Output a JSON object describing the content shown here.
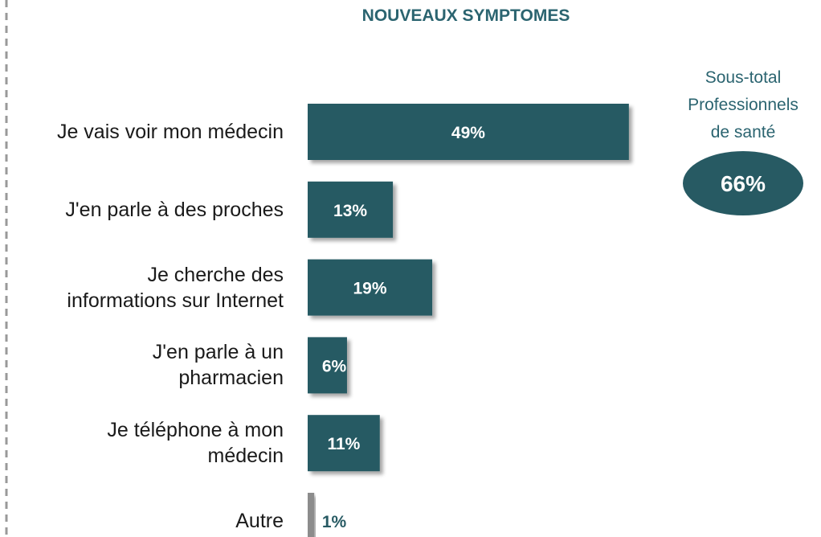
{
  "chart_data": {
    "type": "bar",
    "orientation": "horizontal",
    "title": "NOUVEAUX SYMPTOMES",
    "categories": [
      "Je vais voir mon médecin",
      "J'en parle à des proches",
      "Je cherche des\ninformations sur Internet",
      "J'en parle à un\npharmacien",
      "Je téléphone à mon\nmédecin",
      "Autre"
    ],
    "series": [
      {
        "name": null,
        "colors": [
          "#275a63",
          "#275a63",
          "#275a63",
          "#275a63",
          "#275a63",
          "#8c8c8c"
        ],
        "values": [
          49,
          13,
          19,
          6,
          11,
          1
        ],
        "value_labels": [
          "49%",
          "13%",
          "19%",
          "6%",
          "11%",
          "1%"
        ]
      }
    ],
    "subtotal": {
      "label": "Sous-total\nProfessionnels\nde santé",
      "value": 66,
      "value_label": "66%",
      "color": "#275a63"
    }
  }
}
